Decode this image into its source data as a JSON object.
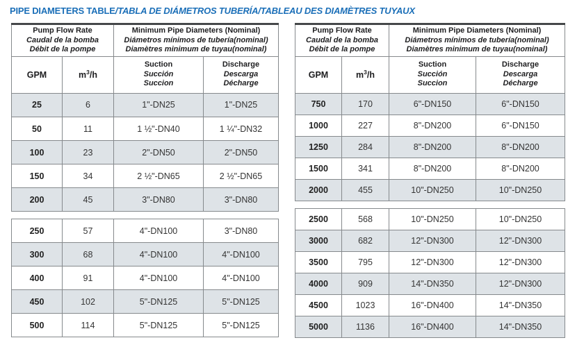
{
  "colors": {
    "accent_blue": "#1b6fb8",
    "row_shade": "#dee3e7",
    "border_gray": "#85898c",
    "border_dark": "#45484a"
  },
  "title": {
    "main": "PIPE DIAMETERS TABLE",
    "intl": "/TABLA DE DIÁMETROS TUBERÍA/TABLEAU DES DIAMÈTRES TUYAUX"
  },
  "header": {
    "flow_group": [
      "Pump Flow Rate",
      "Caudal de la bomba",
      "Débit de la pompe"
    ],
    "diameter_group": [
      "Minimum Pipe Diameters (Nominal)",
      "Diámetros mínimos de tubería(nominal)",
      "Diamètres minimum de tuyau(nominal)"
    ],
    "gpm": "GPM",
    "m3h": [
      "m",
      "3",
      "/h"
    ],
    "suction": [
      "Suction",
      "Succión",
      "Succion"
    ],
    "discharge": [
      "Discharge",
      "Descarga",
      "Décharge"
    ]
  },
  "left_table": {
    "block1": [
      [
        "25",
        "6",
        "1\"-DN25",
        "1\"-DN25"
      ],
      [
        "50",
        "11",
        "1 ½\"-DN40",
        "1 ¼\"-DN32"
      ],
      [
        "100",
        "23",
        "2\"-DN50",
        "2\"-DN50"
      ],
      [
        "150",
        "34",
        "2 ½\"-DN65",
        "2 ½\"-DN65"
      ],
      [
        "200",
        "45",
        "3\"-DN80",
        "3\"-DN80"
      ]
    ],
    "block2": [
      [
        "250",
        "57",
        "4\"-DN100",
        "3\"-DN80"
      ],
      [
        "300",
        "68",
        "4\"-DN100",
        "4\"-DN100"
      ],
      [
        "400",
        "91",
        "4\"-DN100",
        "4\"-DN100"
      ],
      [
        "450",
        "102",
        "5\"-DN125",
        "5\"-DN125"
      ],
      [
        "500",
        "114",
        "5\"-DN125",
        "5\"-DN125"
      ]
    ]
  },
  "right_table": {
    "block1": [
      [
        "750",
        "170",
        "6\"-DN150",
        "6\"-DN150"
      ],
      [
        "1000",
        "227",
        "8\"-DN200",
        "6\"-DN150"
      ],
      [
        "1250",
        "284",
        "8\"-DN200",
        "8\"-DN200"
      ],
      [
        "1500",
        "341",
        "8\"-DN200",
        "8\"-DN200"
      ],
      [
        "2000",
        "455",
        "10\"-DN250",
        "10\"-DN250"
      ]
    ],
    "block2": [
      [
        "2500",
        "568",
        "10\"-DN250",
        "10\"-DN250"
      ],
      [
        "3000",
        "682",
        "12\"-DN300",
        "12\"-DN300"
      ],
      [
        "3500",
        "795",
        "12\"-DN300",
        "12\"-DN300"
      ],
      [
        "4000",
        "909",
        "14\"-DN350",
        "12\"-DN300"
      ],
      [
        "4500",
        "1023",
        "16\"-DN400",
        "14\"-DN350"
      ],
      [
        "5000",
        "1136",
        "16\"-DN400",
        "14\"-DN350"
      ]
    ]
  }
}
